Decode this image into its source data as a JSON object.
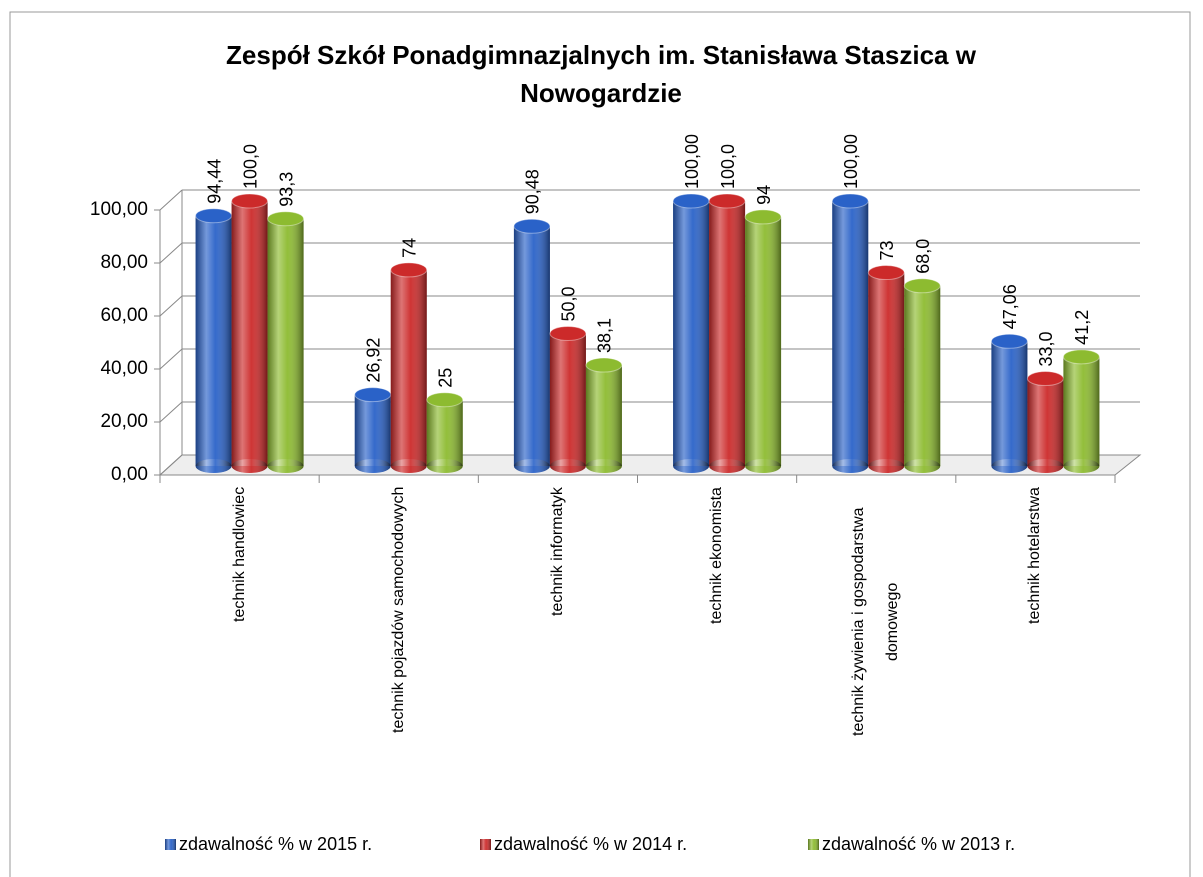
{
  "chart_data": {
    "type": "bar3d",
    "title": "Zespół Szkół Ponadgimnazjalnych im. Stanisława Staszica w Nowogardzie",
    "categories": [
      "technik handlowiec",
      "technik pojazdów samochodowych",
      "technik informatyk",
      "technik ekonomista",
      "technik żywienia i gospodarstwa domowego",
      "technik hotelarstwa"
    ],
    "series": [
      {
        "name": "zdawalność % w 2015 r.",
        "color": "#2a62c8",
        "values": [
          94.44,
          26.92,
          90.48,
          100,
          100,
          47.06
        ],
        "value_labels": [
          "94,44",
          "26,92",
          "90,48",
          "100,00",
          "100,00",
          "47,06"
        ]
      },
      {
        "name": "zdawalność % w 2014 r.",
        "color": "#cc2a2a",
        "values": [
          100,
          74,
          50,
          100,
          73,
          33
        ],
        "value_labels": [
          "100,0",
          "74",
          "50,0",
          "100,0",
          "73",
          "33,0"
        ]
      },
      {
        "name": "zdawalność % w 2013 r.",
        "color": "#8dbb30",
        "values": [
          93.3,
          25,
          38.1,
          94,
          68,
          41.2
        ],
        "value_labels": [
          "93,3",
          "25",
          "38,1",
          "94",
          "68,0",
          "41,2"
        ]
      }
    ],
    "ylim": [
      0,
      100
    ],
    "yticks": [
      {
        "value": 0,
        "label": "0,00"
      },
      {
        "value": 20,
        "label": "20,00"
      },
      {
        "value": 40,
        "label": "40,00"
      },
      {
        "value": 60,
        "label": "60,00"
      },
      {
        "value": 80,
        "label": "80,00"
      },
      {
        "value": 100,
        "label": "100,00"
      }
    ],
    "grid": true,
    "legend": "bottom"
  }
}
